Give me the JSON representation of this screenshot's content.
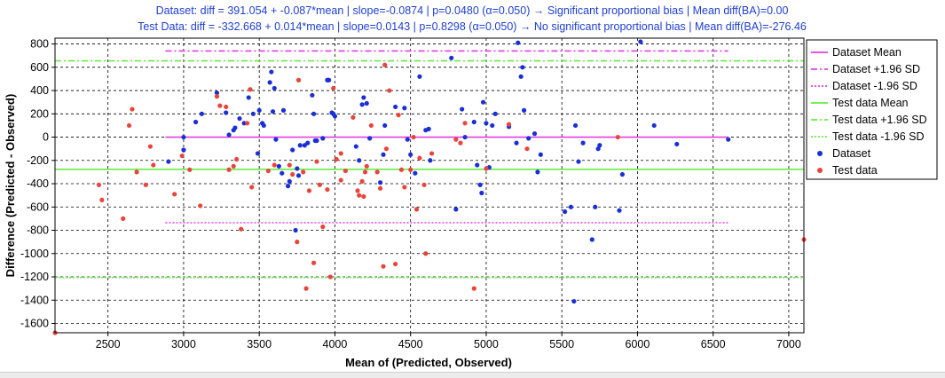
{
  "chart_data": {
    "type": "scatter",
    "title_lines": [
      "Dataset: diff = 391.054 + -0.087*mean | slope=-0.0874 | p=0.0480 (α=0.050) → Significant proportional bias | Mean diff(BA)=0.00",
      "Test Data: diff = -332.668 + 0.014*mean | slope=0.0143 | p=0.8298 (α=0.050) → No significant proportional bias | Mean diff(BA)=-276.46"
    ],
    "xlabel": "Mean of (Predicted, Observed)",
    "ylabel": "Difference (Predicted - Observed)",
    "xlim": [
      2150,
      7100
    ],
    "ylim": [
      -1680,
      850
    ],
    "xticks": [
      2500,
      3000,
      3500,
      4000,
      4500,
      5000,
      5500,
      6000,
      6500,
      7000
    ],
    "yticks": [
      800,
      600,
      400,
      200,
      0,
      -200,
      -400,
      -600,
      -800,
      -1000,
      -1200,
      -1400,
      -1600
    ],
    "grid": true,
    "legend_position": "outside-right",
    "reference_lines": [
      {
        "name": "Dataset Mean",
        "y": 0.0,
        "x_range": [
          2880,
          6600
        ],
        "color": "#e040e0",
        "style": "solid"
      },
      {
        "name": "Dataset +1.96 SD",
        "y": 740,
        "x_range": [
          2880,
          6600
        ],
        "color": "#e040e0",
        "style": "dashdot"
      },
      {
        "name": "Dataset -1.96 SD",
        "y": -735,
        "x_range": [
          2880,
          6600
        ],
        "color": "#e040e0",
        "style": "dotted"
      },
      {
        "name": "Test data Mean",
        "y": -276.46,
        "x_range": [
          2150,
          7100
        ],
        "color": "#66ee44",
        "style": "solid"
      },
      {
        "name": "Test data +1.96 SD",
        "y": 655,
        "x_range": [
          2150,
          7100
        ],
        "color": "#66ee44",
        "style": "dashdot"
      },
      {
        "name": "Test data -1.96 SD",
        "y": -1205,
        "x_range": [
          2150,
          7100
        ],
        "color": "#66ee44",
        "style": "dotted"
      }
    ],
    "series": [
      {
        "name": "Dataset",
        "color": "#1a2fd6",
        "points": [
          [
            2900,
            -210
          ],
          [
            3000,
            0
          ],
          [
            3000,
            -110
          ],
          [
            3080,
            130
          ],
          [
            3120,
            200
          ],
          [
            3220,
            380
          ],
          [
            3280,
            210
          ],
          [
            3300,
            20
          ],
          [
            3330,
            60
          ],
          [
            3340,
            80
          ],
          [
            3370,
            160
          ],
          [
            3400,
            120
          ],
          [
            3430,
            340
          ],
          [
            3460,
            200
          ],
          [
            3490,
            -140
          ],
          [
            3500,
            230
          ],
          [
            3520,
            120
          ],
          [
            3530,
            100
          ],
          [
            3570,
            470
          ],
          [
            3580,
            560
          ],
          [
            3590,
            220
          ],
          [
            3600,
            420
          ],
          [
            3610,
            -20
          ],
          [
            3630,
            -250
          ],
          [
            3650,
            -310
          ],
          [
            3660,
            230
          ],
          [
            3690,
            -420
          ],
          [
            3700,
            -380
          ],
          [
            3720,
            -110
          ],
          [
            3740,
            -800
          ],
          [
            3750,
            -270
          ],
          [
            3760,
            -330
          ],
          [
            3770,
            -70
          ],
          [
            3800,
            -70
          ],
          [
            3820,
            -50
          ],
          [
            3850,
            360
          ],
          [
            3860,
            200
          ],
          [
            3870,
            -30
          ],
          [
            3880,
            -30
          ],
          [
            3920,
            -10
          ],
          [
            3950,
            490
          ],
          [
            3960,
            490
          ],
          [
            3980,
            210
          ],
          [
            3990,
            200
          ],
          [
            4000,
            180
          ],
          [
            4140,
            -80
          ],
          [
            4160,
            -200
          ],
          [
            4180,
            280
          ],
          [
            4190,
            340
          ],
          [
            4210,
            290
          ],
          [
            4230,
            -10
          ],
          [
            4300,
            -390
          ],
          [
            4320,
            -150
          ],
          [
            4330,
            100
          ],
          [
            4400,
            260
          ],
          [
            4460,
            250
          ],
          [
            4480,
            -20
          ],
          [
            4500,
            -150
          ],
          [
            4530,
            -310
          ],
          [
            4560,
            520
          ],
          [
            4600,
            60
          ],
          [
            4620,
            70
          ],
          [
            4630,
            -200
          ],
          [
            4770,
            680
          ],
          [
            4800,
            -620
          ],
          [
            4840,
            240
          ],
          [
            4860,
            0
          ],
          [
            4920,
            130
          ],
          [
            4940,
            -240
          ],
          [
            4960,
            -410
          ],
          [
            4970,
            -480
          ],
          [
            4980,
            300
          ],
          [
            5000,
            120
          ],
          [
            5020,
            -260
          ],
          [
            5040,
            100
          ],
          [
            5060,
            200
          ],
          [
            5150,
            90
          ],
          [
            5200,
            -50
          ],
          [
            5210,
            810
          ],
          [
            5230,
            520
          ],
          [
            5240,
            600
          ],
          [
            5250,
            230
          ],
          [
            5280,
            -10
          ],
          [
            5320,
            30
          ],
          [
            5340,
            -300
          ],
          [
            5360,
            -150
          ],
          [
            5520,
            -640
          ],
          [
            5560,
            -600
          ],
          [
            5580,
            -1410
          ],
          [
            5590,
            100
          ],
          [
            5610,
            -210
          ],
          [
            5640,
            -50
          ],
          [
            5700,
            -880
          ],
          [
            5720,
            -600
          ],
          [
            5740,
            -100
          ],
          [
            5750,
            -70
          ],
          [
            5880,
            -630
          ],
          [
            5900,
            -320
          ],
          [
            6020,
            820
          ],
          [
            6110,
            100
          ],
          [
            6260,
            -60
          ],
          [
            6600,
            -20
          ]
        ]
      },
      {
        "name": "Test data",
        "color": "#e8453c",
        "points": [
          [
            2150,
            -1680
          ],
          [
            2440,
            -410
          ],
          [
            2460,
            -540
          ],
          [
            2600,
            -700
          ],
          [
            2640,
            100
          ],
          [
            2660,
            240
          ],
          [
            2690,
            -300
          ],
          [
            2750,
            -410
          ],
          [
            2780,
            -80
          ],
          [
            2800,
            -240
          ],
          [
            2940,
            -490
          ],
          [
            2990,
            -160
          ],
          [
            3040,
            -280
          ],
          [
            3110,
            -590
          ],
          [
            3220,
            350
          ],
          [
            3240,
            270
          ],
          [
            3280,
            260
          ],
          [
            3300,
            -280
          ],
          [
            3330,
            -250
          ],
          [
            3350,
            -190
          ],
          [
            3380,
            -790
          ],
          [
            3420,
            120
          ],
          [
            3440,
            410
          ],
          [
            3450,
            -430
          ],
          [
            3560,
            -290
          ],
          [
            3600,
            -240
          ],
          [
            3700,
            -240
          ],
          [
            3720,
            -320
          ],
          [
            3750,
            -900
          ],
          [
            3760,
            490
          ],
          [
            3790,
            -300
          ],
          [
            3810,
            -1300
          ],
          [
            3830,
            -460
          ],
          [
            3860,
            -1080
          ],
          [
            3880,
            -210
          ],
          [
            3900,
            -410
          ],
          [
            3920,
            -770
          ],
          [
            3950,
            -450
          ],
          [
            3970,
            -1200
          ],
          [
            3990,
            420
          ],
          [
            4010,
            -190
          ],
          [
            4040,
            -370
          ],
          [
            4070,
            -290
          ],
          [
            4120,
            170
          ],
          [
            4150,
            -460
          ],
          [
            4160,
            -500
          ],
          [
            4180,
            -380
          ],
          [
            4190,
            -510
          ],
          [
            4200,
            -300
          ],
          [
            4210,
            -250
          ],
          [
            4240,
            100
          ],
          [
            4280,
            -300
          ],
          [
            4300,
            -440
          ],
          [
            4320,
            -1110
          ],
          [
            4340,
            -100
          ],
          [
            4360,
            400
          ],
          [
            4400,
            -1090
          ],
          [
            4420,
            190
          ],
          [
            4440,
            -280
          ],
          [
            4460,
            -430
          ],
          [
            4500,
            -280
          ],
          [
            4520,
            0
          ],
          [
            4540,
            -620
          ],
          [
            4560,
            -180
          ],
          [
            4590,
            -410
          ],
          [
            4600,
            -1000
          ],
          [
            4640,
            -140
          ],
          [
            4800,
            -20
          ],
          [
            4830,
            -50
          ],
          [
            4860,
            120
          ],
          [
            4920,
            -1300
          ],
          [
            5000,
            -270
          ],
          [
            5150,
            110
          ],
          [
            5270,
            -100
          ],
          [
            5870,
            0
          ],
          [
            7100,
            -880
          ],
          [
            4330,
            620
          ],
          [
            4040,
            -140
          ]
        ]
      }
    ]
  },
  "legend": [
    {
      "label": "Dataset Mean",
      "kind": "line",
      "color": "#e040e0",
      "dash": ""
    },
    {
      "label": "Dataset +1.96 SD",
      "kind": "line",
      "color": "#e040e0",
      "dash": "7 3 2 3"
    },
    {
      "label": "Dataset -1.96 SD",
      "kind": "line",
      "color": "#e040e0",
      "dash": "2 2"
    },
    {
      "label": "Test data Mean",
      "kind": "line",
      "color": "#66ee44",
      "dash": ""
    },
    {
      "label": "Test data +1.96 SD",
      "kind": "line",
      "color": "#66ee44",
      "dash": "7 3 2 3"
    },
    {
      "label": "Test data -1.96 SD",
      "kind": "line",
      "color": "#66ee44",
      "dash": "2 2"
    },
    {
      "label": "Dataset",
      "kind": "marker",
      "color": "#1a2fd6"
    },
    {
      "label": "Test data",
      "kind": "marker",
      "color": "#e8453c"
    }
  ]
}
